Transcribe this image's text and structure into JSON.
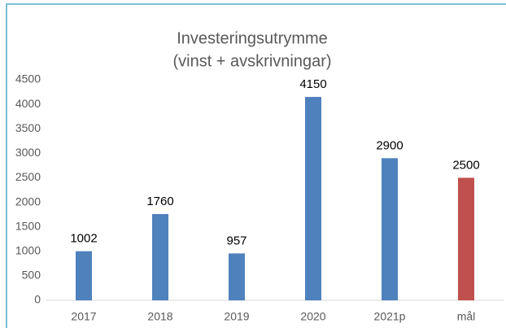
{
  "chart_data": {
    "type": "bar",
    "title": "Investeringsutrymme",
    "subtitle": "(vinst + avskrivningar)",
    "categories": [
      "2017",
      "2018",
      "2019",
      "2020",
      "2021p",
      "mål"
    ],
    "values": [
      1002,
      1760,
      957,
      4150,
      2900,
      2500
    ],
    "colors": [
      "#4f81bd",
      "#4f81bd",
      "#4f81bd",
      "#4f81bd",
      "#4f81bd",
      "#c0504d"
    ],
    "ylim": [
      0,
      4500
    ],
    "yticks": [
      0,
      500,
      1000,
      1500,
      2000,
      2500,
      3000,
      3500,
      4000,
      4500
    ],
    "grid": false
  }
}
